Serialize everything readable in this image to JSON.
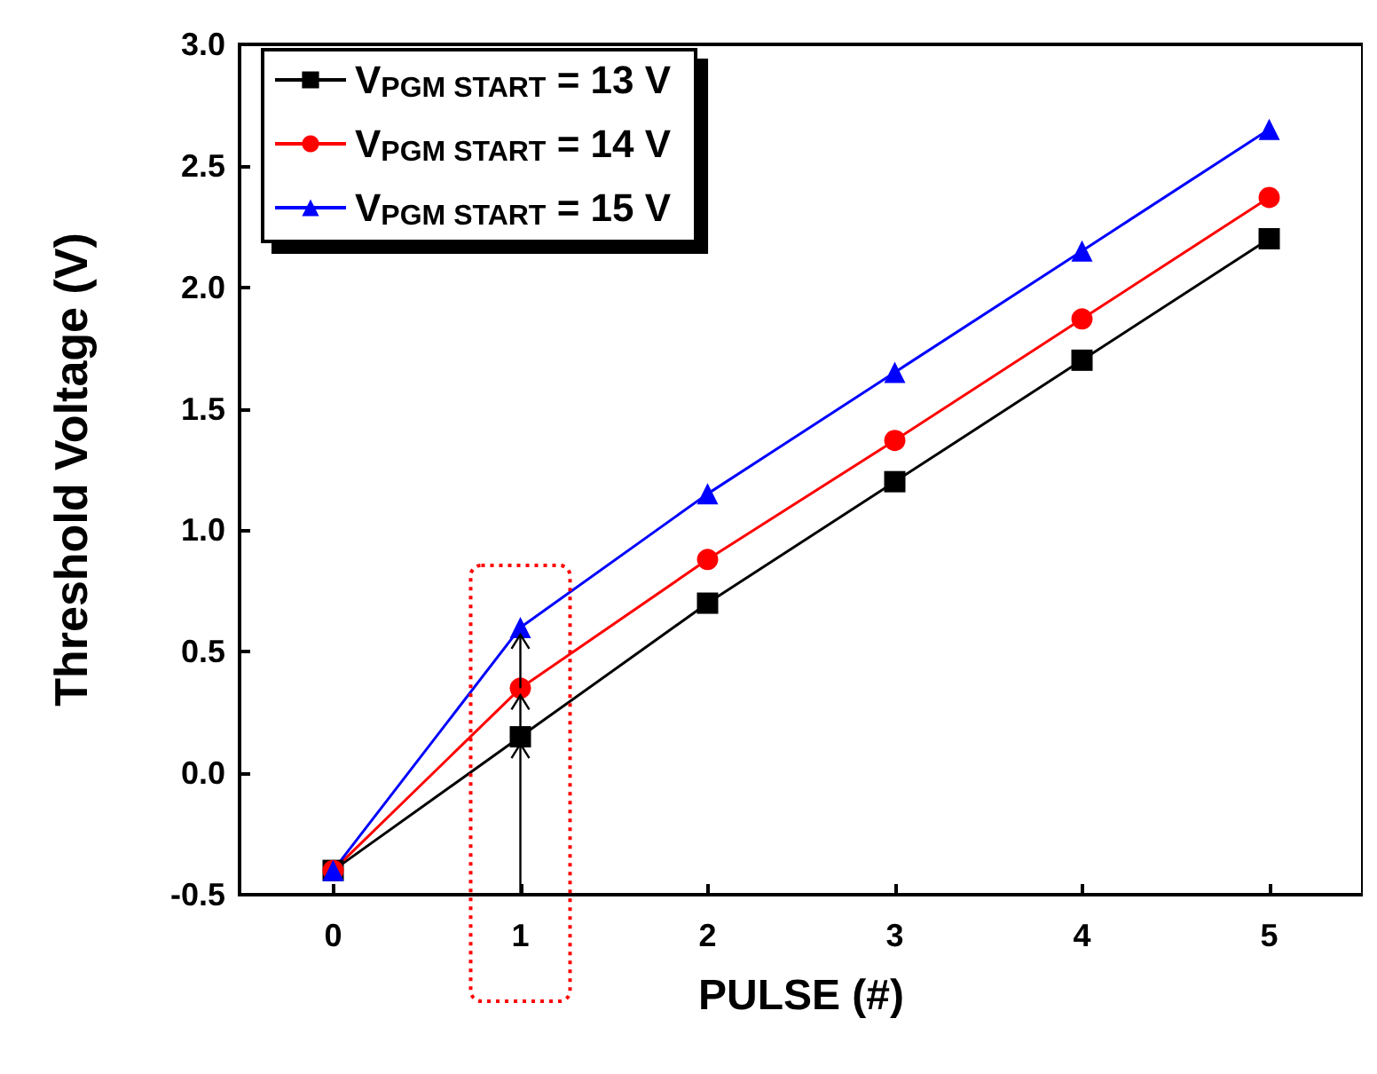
{
  "chart_data": {
    "type": "line",
    "xlabel": "PULSE (#)",
    "ylabel": "Threshold Voltage (V)",
    "x": [
      0,
      1,
      2,
      3,
      4,
      5
    ],
    "series": [
      {
        "name": "V$_{PGM START}$ = 13 V",
        "color": "#000000",
        "marker": "square",
        "values": [
          -0.4,
          0.15,
          0.7,
          1.2,
          1.7,
          2.2
        ]
      },
      {
        "name": "V$_{PGM START}$ = 14 V",
        "color": "#ff0000",
        "marker": "circle",
        "values": [
          -0.4,
          0.35,
          0.88,
          1.37,
          1.87,
          2.37
        ]
      },
      {
        "name": "V$_{PGM START}$ = 15 V",
        "color": "#0000ff",
        "marker": "triangle",
        "values": [
          -0.4,
          0.6,
          1.15,
          1.65,
          2.15,
          2.65
        ]
      }
    ],
    "xlim": [
      -0.5,
      5.5
    ],
    "xticks": [
      0,
      1,
      2,
      3,
      4,
      5
    ],
    "ylim": [
      -0.5,
      3.0
    ],
    "yticks": [
      -0.5,
      {
        "value": 0,
        "label": "0.0"
      },
      0.5,
      {
        "value": 1,
        "label": "1.0"
      },
      1.5,
      {
        "value": 2,
        "label": "2.0"
      },
      2.5,
      {
        "value": 3,
        "label": "3.0"
      }
    ],
    "grid": false,
    "legend": "top left",
    "line_style": "solid"
  }
}
